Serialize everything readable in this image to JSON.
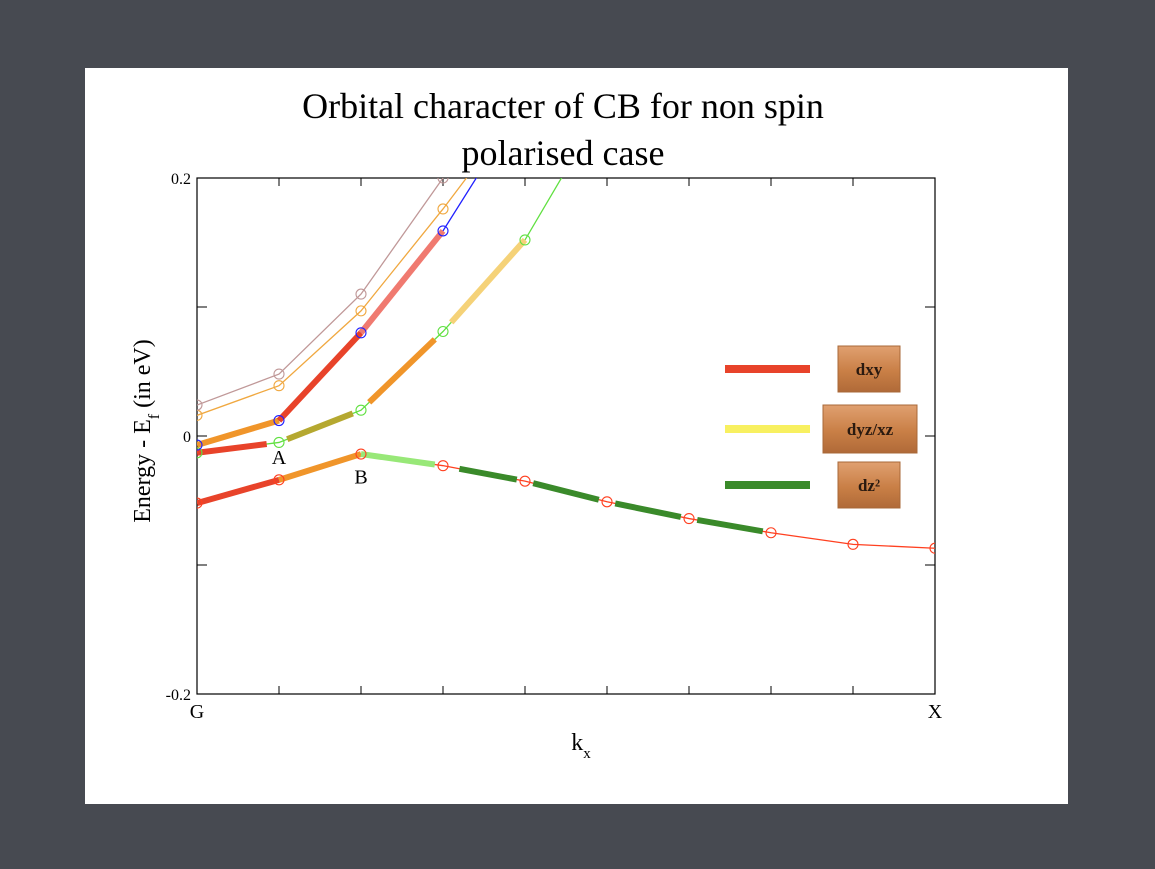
{
  "chart_data": {
    "type": "line",
    "title": [
      "Orbital character of CB for non spin",
      "polarised case"
    ],
    "xlabel": "k",
    "xlabel_sub": "x",
    "ylabel": "Energy - E",
    "ylabel_sub": "f",
    "ylabel_tail": " (in eV)",
    "xlim": [
      0,
      9
    ],
    "ylim": [
      -0.2,
      0.2
    ],
    "y_ticks": [
      0.2,
      0,
      -0.2
    ],
    "y_tick_labels": [
      "0.2",
      "0",
      "-0.2"
    ],
    "x_tick_labels": [
      {
        "x": 0,
        "label": "G"
      },
      {
        "x": 9,
        "label": "X"
      }
    ],
    "point_labels": [
      {
        "x": 1,
        "y": -0.017,
        "label": "A"
      },
      {
        "x": 2,
        "y": -0.032,
        "label": "B"
      }
    ],
    "grid": false,
    "series": [
      {
        "color": "#ff4020",
        "x": [
          0,
          1,
          2,
          3,
          4,
          5,
          6,
          7,
          8,
          9
        ],
        "y": [
          -0.052,
          -0.034,
          -0.014,
          -0.023,
          -0.035,
          -0.051,
          -0.064,
          -0.075,
          -0.084,
          -0.087
        ],
        "segments": [
          {
            "from": 0,
            "to": 1,
            "color": "#e8432a"
          },
          {
            "from": 1,
            "to": 2,
            "color": "#f0952a"
          },
          {
            "from": 2,
            "to": 2.9,
            "color": "#98e878"
          },
          {
            "from": 3.2,
            "to": 3.9,
            "color": "#3a8a2a"
          },
          {
            "from": 4.1,
            "to": 4.9,
            "color": "#3a8a2a"
          },
          {
            "from": 5.1,
            "to": 5.9,
            "color": "#3a8a2a"
          },
          {
            "from": 6.1,
            "to": 6.9,
            "color": "#3a8a2a"
          }
        ]
      },
      {
        "color": "#60e040",
        "x": [
          0,
          1,
          2,
          3,
          4,
          5
        ],
        "y": [
          -0.013,
          -0.005,
          0.02,
          0.081,
          0.152,
          0.26
        ],
        "segments": [
          {
            "from": 0,
            "to": 0.85,
            "color": "#e8432a"
          },
          {
            "from": 1.1,
            "to": 1.9,
            "color": "#b5a830"
          },
          {
            "from": 2.1,
            "to": 2.9,
            "color": "#f0952a"
          },
          {
            "from": 3.1,
            "to": 4,
            "color": "#f5d278"
          }
        ]
      },
      {
        "color": "#2020ff",
        "x": [
          0,
          1,
          2,
          3,
          4
        ],
        "y": [
          -0.007,
          0.012,
          0.08,
          0.159,
          0.26
        ],
        "segments": [
          {
            "from": 0,
            "to": 1,
            "color": "#f0952a"
          },
          {
            "from": 1,
            "to": 2,
            "color": "#e8432a"
          },
          {
            "from": 2,
            "to": 3,
            "color": "#f07a70"
          }
        ]
      },
      {
        "color": "#f0a840",
        "x": [
          0,
          1,
          2,
          3,
          4
        ],
        "y": [
          0.016,
          0.039,
          0.097,
          0.176,
          0.26
        ],
        "segments": []
      },
      {
        "color": "#c09898",
        "x": [
          0,
          1,
          2,
          3,
          4
        ],
        "y": [
          0.024,
          0.048,
          0.11,
          0.2,
          0.26
        ],
        "segments": []
      }
    ],
    "legend": [
      {
        "color": "#e8432a",
        "label": "dxy"
      },
      {
        "color": "#f8f060",
        "label": "dyz/xz"
      },
      {
        "color": "#3a8a2a",
        "label": "dz²"
      }
    ],
    "legend_position": "right"
  }
}
